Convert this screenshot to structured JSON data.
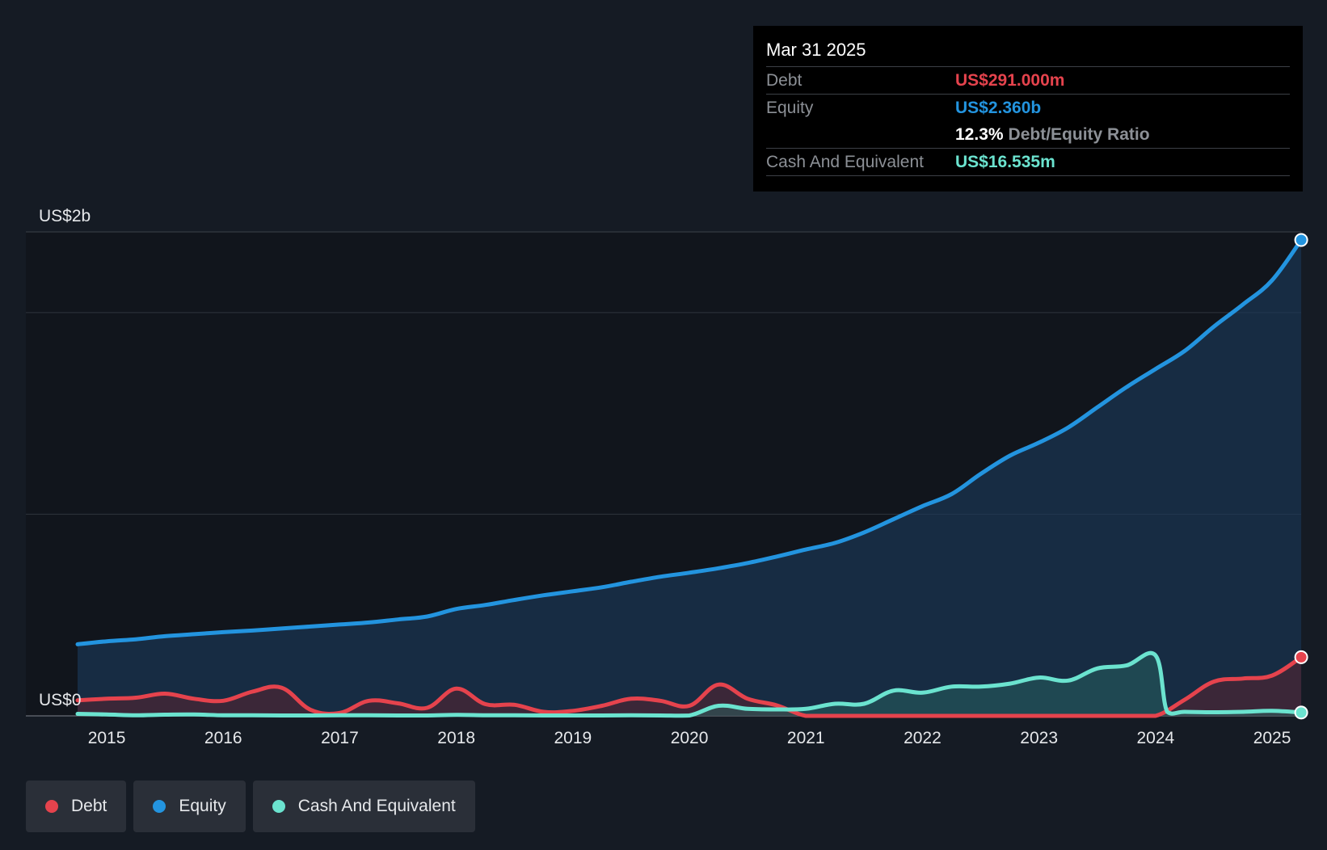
{
  "tooltip": {
    "date": "Mar 31 2025",
    "debt_label": "Debt",
    "debt_value": "US$291.000m",
    "equity_label": "Equity",
    "equity_value": "US$2.360b",
    "ratio_value": "12.3%",
    "ratio_label": "Debt/Equity Ratio",
    "cash_label": "Cash And Equivalent",
    "cash_value": "US$16.535m"
  },
  "legend": {
    "debt": "Debt",
    "equity": "Equity",
    "cash": "Cash And Equivalent"
  },
  "colors": {
    "debt": "#e5434d",
    "equity": "#2394df",
    "cash": "#6be3cf",
    "background": "#151b24"
  },
  "chart_data": {
    "type": "area",
    "title": "",
    "xlabel": "",
    "ylabel": "",
    "y_axis_labels": [
      {
        "text": "US$2b",
        "value": 2.4
      },
      {
        "text": "US$0",
        "value": 0
      }
    ],
    "ylim": [
      0,
      2.4
    ],
    "gridlines": [
      0,
      1.0,
      2.0,
      2.4
    ],
    "xlim": [
      2014.7,
      2025.25
    ],
    "x_ticks": [
      "2015",
      "2016",
      "2017",
      "2018",
      "2019",
      "2020",
      "2021",
      "2022",
      "2023",
      "2024",
      "2025"
    ],
    "series": [
      {
        "name": "Equity",
        "key": "equity",
        "x": [
          2014.75,
          2015.0,
          2015.25,
          2015.5,
          2015.75,
          2016.0,
          2016.25,
          2016.5,
          2016.75,
          2017.0,
          2017.25,
          2017.5,
          2017.75,
          2018.0,
          2018.25,
          2018.5,
          2018.75,
          2019.0,
          2019.25,
          2019.5,
          2019.75,
          2020.0,
          2020.25,
          2020.5,
          2020.75,
          2021.0,
          2021.25,
          2021.5,
          2021.75,
          2022.0,
          2022.25,
          2022.5,
          2022.75,
          2023.0,
          2023.25,
          2023.5,
          2023.75,
          2024.0,
          2024.25,
          2024.5,
          2024.75,
          2025.0,
          2025.25
        ],
        "values": [
          0.355,
          0.37,
          0.38,
          0.395,
          0.405,
          0.415,
          0.423,
          0.433,
          0.443,
          0.453,
          0.463,
          0.478,
          0.493,
          0.53,
          0.55,
          0.575,
          0.598,
          0.618,
          0.638,
          0.665,
          0.69,
          0.71,
          0.732,
          0.758,
          0.79,
          0.825,
          0.858,
          0.91,
          0.975,
          1.04,
          1.1,
          1.2,
          1.29,
          1.355,
          1.43,
          1.53,
          1.63,
          1.72,
          1.81,
          1.93,
          2.04,
          2.16,
          2.36
        ]
      },
      {
        "name": "Debt",
        "key": "debt",
        "x": [
          2014.75,
          2015.0,
          2015.25,
          2015.5,
          2015.75,
          2016.0,
          2016.25,
          2016.5,
          2016.75,
          2017.0,
          2017.25,
          2017.5,
          2017.75,
          2018.0,
          2018.25,
          2018.5,
          2018.75,
          2019.0,
          2019.25,
          2019.5,
          2019.75,
          2020.0,
          2020.25,
          2020.5,
          2020.75,
          2021.0,
          2021.25,
          2021.5,
          2021.75,
          2022.0,
          2022.25,
          2022.5,
          2022.75,
          2023.0,
          2023.25,
          2023.5,
          2023.75,
          2024.0,
          2024.25,
          2024.5,
          2024.75,
          2025.0,
          2025.25
        ],
        "values": [
          0.077,
          0.085,
          0.09,
          0.11,
          0.085,
          0.075,
          0.12,
          0.14,
          0.03,
          0.015,
          0.075,
          0.062,
          0.04,
          0.135,
          0.058,
          0.055,
          0.02,
          0.025,
          0.05,
          0.085,
          0.075,
          0.05,
          0.155,
          0.085,
          0.052,
          0.0,
          0.0,
          0.0,
          0.0,
          0.0,
          0.0,
          0.0,
          0.0,
          0.0,
          0.0,
          0.0,
          0.0,
          0.0,
          0.08,
          0.17,
          0.185,
          0.2,
          0.291
        ]
      },
      {
        "name": "Cash And Equivalent",
        "key": "cash",
        "x": [
          2014.75,
          2015.0,
          2015.25,
          2015.5,
          2015.75,
          2016.0,
          2016.25,
          2016.5,
          2016.75,
          2017.0,
          2017.25,
          2017.5,
          2017.75,
          2018.0,
          2018.25,
          2018.5,
          2018.75,
          2019.0,
          2019.25,
          2019.5,
          2019.75,
          2020.0,
          2020.25,
          2020.5,
          2020.75,
          2021.0,
          2021.25,
          2021.5,
          2021.75,
          2022.0,
          2022.25,
          2022.5,
          2022.75,
          2023.0,
          2023.25,
          2023.5,
          2023.75,
          2024.0,
          2024.1,
          2024.25,
          2024.5,
          2024.75,
          2025.0,
          2025.25
        ],
        "values": [
          0.01,
          0.007,
          0.003,
          0.006,
          0.007,
          0.003,
          0.003,
          0.002,
          0.002,
          0.003,
          0.003,
          0.002,
          0.002,
          0.005,
          0.003,
          0.003,
          0.002,
          0.002,
          0.002,
          0.003,
          0.002,
          0.002,
          0.05,
          0.035,
          0.032,
          0.035,
          0.06,
          0.06,
          0.125,
          0.115,
          0.145,
          0.145,
          0.16,
          0.19,
          0.175,
          0.235,
          0.25,
          0.3,
          0.02,
          0.02,
          0.018,
          0.02,
          0.025,
          0.0165
        ]
      }
    ]
  }
}
